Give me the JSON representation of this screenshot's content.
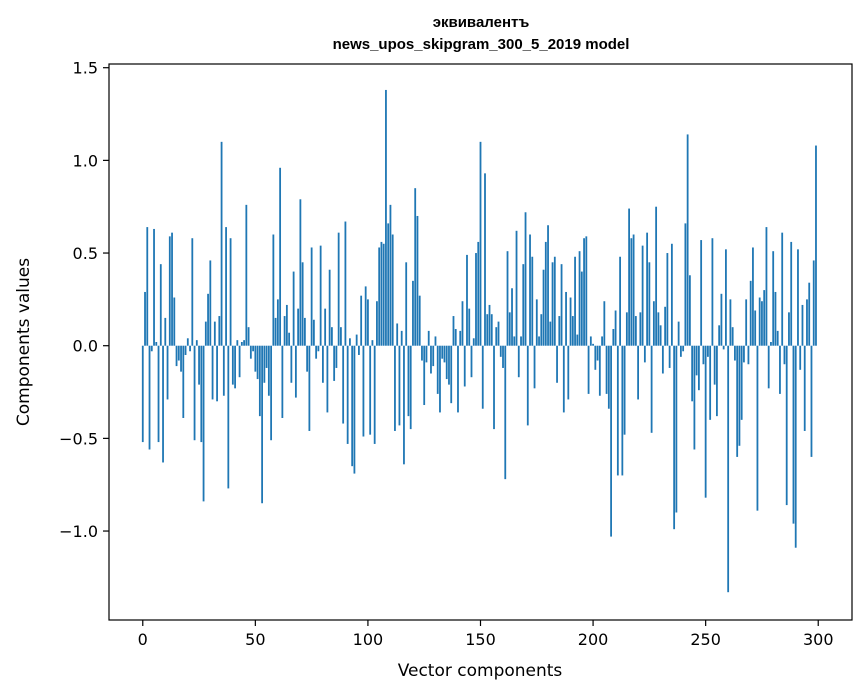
{
  "chart_data": {
    "type": "bar",
    "title": "эквивалентъ",
    "subtitle": "news_upos_skipgram_300_5_2019 model",
    "xlabel": "Vector components",
    "ylabel": "Components values",
    "xlim": [
      -15,
      315
    ],
    "ylim": [
      -1.48,
      1.52
    ],
    "xticks": [
      0,
      50,
      100,
      150,
      200,
      250,
      300
    ],
    "xtick_labels": [
      "0",
      "50",
      "100",
      "150",
      "200",
      "250",
      "300"
    ],
    "yticks": [
      -1.0,
      -0.5,
      0.0,
      0.5,
      1.0,
      1.5
    ],
    "ytick_labels": [
      "−1.0",
      "−0.5",
      "0.0",
      "0.5",
      "1.0",
      "1.5"
    ],
    "grid": false,
    "color": "#1f77b4",
    "values": [
      -0.52,
      0.29,
      0.64,
      -0.56,
      -0.03,
      0.63,
      0.02,
      -0.52,
      0.44,
      -0.63,
      0.15,
      -0.29,
      0.59,
      0.61,
      0.26,
      -0.11,
      -0.08,
      -0.14,
      -0.39,
      -0.05,
      0.04,
      -0.03,
      0.58,
      -0.51,
      0.03,
      -0.21,
      -0.52,
      -0.84,
      0.13,
      0.28,
      0.46,
      -0.29,
      0.13,
      -0.3,
      0.16,
      1.1,
      -0.27,
      0.64,
      -0.77,
      0.58,
      -0.21,
      -0.23,
      0.03,
      -0.17,
      0.02,
      0.03,
      0.76,
      0.1,
      -0.07,
      -0.03,
      -0.14,
      -0.18,
      -0.38,
      -0.85,
      -0.2,
      -0.12,
      -0.27,
      -0.51,
      0.6,
      0.15,
      0.25,
      0.96,
      -0.39,
      0.16,
      0.22,
      0.07,
      -0.2,
      0.4,
      -0.28,
      0.2,
      0.79,
      0.45,
      0.15,
      -0.14,
      -0.46,
      0.53,
      0.14,
      -0.07,
      -0.03,
      0.54,
      -0.2,
      0.2,
      -0.36,
      0.41,
      0.1,
      -0.19,
      -0.12,
      0.61,
      0.1,
      -0.42,
      0.67,
      -0.53,
      0.04,
      -0.65,
      -0.69,
      0.06,
      -0.05,
      0.27,
      -0.49,
      0.32,
      0.25,
      -0.48,
      0.03,
      -0.53,
      0.24,
      0.53,
      0.56,
      0.55,
      1.38,
      0.66,
      0.76,
      0.6,
      -0.46,
      0.12,
      -0.43,
      0.08,
      -0.64,
      0.45,
      -0.38,
      -0.45,
      0.35,
      0.85,
      0.7,
      0.27,
      -0.08,
      -0.32,
      -0.09,
      0.08,
      -0.15,
      -0.11,
      0.05,
      -0.26,
      -0.36,
      -0.07,
      -0.09,
      -0.18,
      -0.21,
      -0.31,
      0.16,
      0.09,
      -0.36,
      0.08,
      0.24,
      -0.22,
      0.49,
      0.2,
      -0.17,
      0.04,
      0.5,
      0.56,
      1.1,
      -0.34,
      0.93,
      0.17,
      0.22,
      0.17,
      -0.45,
      0.1,
      0.13,
      -0.06,
      -0.12,
      -0.72,
      0.51,
      0.18,
      0.31,
      0.05,
      0.62,
      -0.17,
      0.05,
      0.44,
      0.72,
      -0.43,
      0.6,
      0.48,
      -0.23,
      0.25,
      0.05,
      0.17,
      0.41,
      0.56,
      0.65,
      0.13,
      0.45,
      0.48,
      -0.2,
      0.16,
      0.44,
      -0.36,
      0.29,
      -0.29,
      0.26,
      0.16,
      0.48,
      0.06,
      0.51,
      0.4,
      0.58,
      0.59,
      -0.26,
      0.05,
      0.01,
      -0.13,
      -0.08,
      -0.27,
      0.05,
      0.24,
      -0.26,
      -0.34,
      -1.03,
      0.09,
      0.19,
      -0.7,
      0.48,
      -0.7,
      -0.48,
      0.18,
      0.74,
      0.58,
      0.6,
      0.16,
      -0.29,
      0.18,
      0.54,
      -0.09,
      0.61,
      0.45,
      -0.47,
      0.24,
      0.75,
      0.18,
      0.11,
      -0.15,
      0.21,
      0.5,
      -0.12,
      0.55,
      -0.99,
      -0.9,
      0.13,
      -0.06,
      -0.03,
      0.66,
      1.14,
      0.38,
      -0.3,
      -0.56,
      -0.16,
      -0.24,
      0.57,
      -0.1,
      -0.82,
      -0.06,
      -0.4,
      0.58,
      -0.21,
      -0.38,
      0.11,
      0.28,
      -0.02,
      0.52,
      -1.33,
      0.25,
      0.1,
      -0.08,
      -0.6,
      -0.54,
      -0.4,
      -0.09,
      0.25,
      -0.1,
      0.35,
      0.53,
      0.19,
      -0.89,
      0.26,
      0.24,
      0.3,
      0.64,
      -0.23,
      0.02,
      0.51,
      0.29,
      0.08,
      -0.26,
      0.61,
      -0.1,
      -0.86,
      0.18,
      0.56,
      -0.96,
      -1.09,
      0.52,
      -0.13,
      0.22,
      -0.46,
      0.25,
      0.34,
      -0.6,
      0.46,
      1.08
    ]
  }
}
